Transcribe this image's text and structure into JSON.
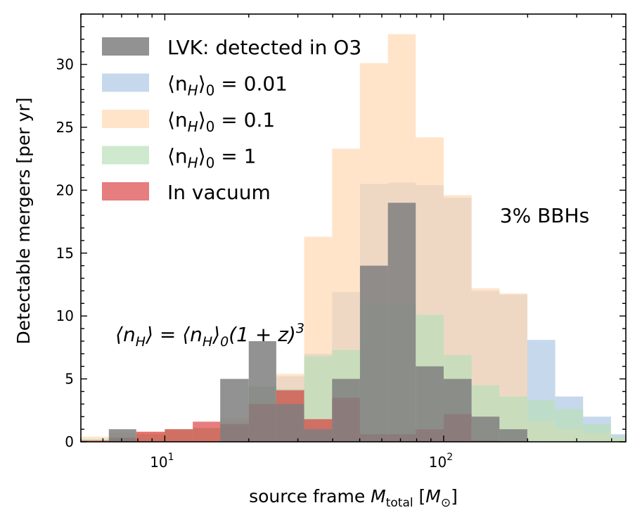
{
  "chart_data": {
    "type": "bar",
    "xscale": "log",
    "xlim": [
      5,
      450
    ],
    "ylim": [
      0,
      34
    ],
    "xlabel": "source frame M_total [M_⊙]",
    "ylabel": "Detectable mergers [per yr]",
    "grid": false,
    "legend_location": "top-left",
    "bin_edges": [
      5.0,
      6.3,
      7.9,
      10.0,
      12.6,
      15.8,
      20.0,
      25.1,
      31.6,
      39.8,
      50.1,
      63.1,
      79.4,
      100.0,
      125.9,
      158.5,
      199.5,
      251.2,
      316.2,
      398.1,
      450.0
    ],
    "xticks": {
      "values": [
        10,
        100
      ],
      "labels": [
        {
          "base": "10",
          "exp": "1"
        },
        {
          "base": "10",
          "exp": "2"
        }
      ]
    },
    "yticks": {
      "values": [
        0,
        5,
        10,
        15,
        20,
        25,
        30
      ],
      "labels": [
        "0",
        "5",
        "10",
        "15",
        "20",
        "25",
        "30"
      ]
    },
    "series": [
      {
        "name": "⟨n_H⟩₀ = 0.01",
        "legend_base": "⟨n",
        "legend_sub": "H",
        "legend_close": "⟩",
        "legend_sub2": "0",
        "legend_rest": " = 0.01",
        "color": "#aec8e2",
        "opacity": 0.7,
        "values": [
          0.2,
          0.4,
          0.6,
          1.0,
          1.0,
          1.6,
          3.0,
          5.2,
          7.0,
          11.9,
          20.5,
          20.6,
          20.4,
          19.4,
          12.0,
          11.7,
          8.1,
          3.6,
          2.0,
          0.6
        ]
      },
      {
        "name": "⟨n_H⟩₀ = 0.1",
        "legend_base": "⟨n",
        "legend_sub": "H",
        "legend_close": "⟩",
        "legend_sub2": "0",
        "legend_rest": " = 0.1",
        "color": "#ffd8b4",
        "opacity": 0.7,
        "values": [
          0.4,
          0.7,
          0.8,
          1.0,
          1.1,
          1.9,
          4.4,
          5.4,
          16.3,
          23.3,
          30.1,
          32.4,
          24.2,
          19.6,
          12.2,
          11.8,
          1.6,
          1.0,
          0.7,
          0.3
        ]
      },
      {
        "name": "⟨n_H⟩₀ = 1",
        "legend_base": "⟨n",
        "legend_sub": "H",
        "legend_close": "⟩",
        "legend_sub2": "0",
        "legend_rest": " = 1",
        "color": "#b9e0b9",
        "opacity": 0.7,
        "values": [
          0.2,
          0.4,
          0.6,
          1.0,
          1.1,
          1.6,
          4.4,
          4.2,
          6.8,
          7.3,
          10.9,
          10.9,
          10.1,
          6.9,
          4.5,
          3.6,
          3.3,
          2.6,
          1.4,
          0.4
        ]
      },
      {
        "name": "In vacuum",
        "legend_base": "In vacuum",
        "legend_sub": "",
        "legend_close": "",
        "legend_sub2": "",
        "legend_rest": "",
        "color": "#d62728",
        "opacity": 0.6,
        "values": [
          0.1,
          0.3,
          0.8,
          1.0,
          1.6,
          1.4,
          3.0,
          4.1,
          1.8,
          3.5,
          0.6,
          0.6,
          1.0,
          2.2,
          0.1,
          0.0,
          0.0,
          0.0,
          0.0,
          0.0
        ]
      },
      {
        "name": "LVK: detected in O3",
        "legend_base": "LVK: detected in O3",
        "legend_sub": "",
        "legend_close": "",
        "legend_sub2": "",
        "legend_rest": "",
        "color": "#7f7f7f",
        "opacity": 0.85,
        "values": [
          0.0,
          1.0,
          0.0,
          0.0,
          0.0,
          5.0,
          8.0,
          3.0,
          1.0,
          5.0,
          14.0,
          19.0,
          6.0,
          5.0,
          2.0,
          1.0,
          0.0,
          0.0,
          0.0,
          0.0
        ]
      }
    ],
    "legend_order": [
      4,
      0,
      1,
      2,
      3
    ],
    "annotations": [
      {
        "text": "3% BBHs",
        "x": 150,
        "y": 18,
        "kind": "plain"
      },
      {
        "text": "⟨n_H⟩ = ⟨n_H⟩₀(1 + z)³",
        "x": 6.2,
        "y": 8,
        "kind": "formula"
      }
    ]
  }
}
